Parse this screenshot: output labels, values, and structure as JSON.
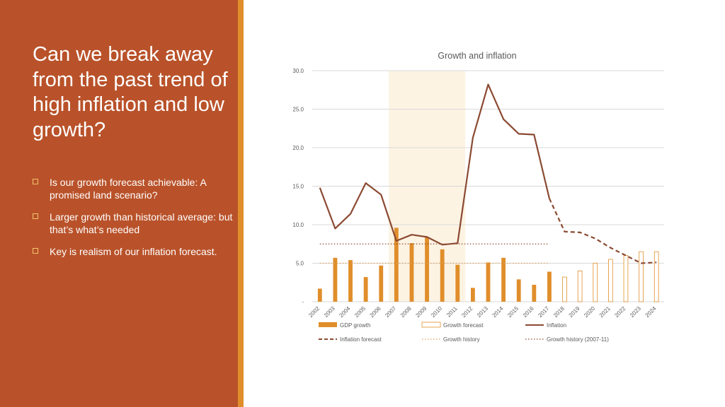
{
  "slide": {
    "title": "Can we break away from the past trend of high inflation and low growth?",
    "bullets": [
      "Is our growth forecast achievable: A promised land scenario?",
      "Larger growth than historical average: but that’s what’s needed",
      "Key is realism of our inflation forecast."
    ]
  },
  "colors": {
    "left_panel": "#b9522a",
    "accent_bar": "#e08e2b",
    "bar": "#e08e2b",
    "inflation": "#8b4a32",
    "highlight_band": "#fdf3e3",
    "grid": "#d9d9d9",
    "text": "#595959"
  },
  "chart_data": {
    "type": "bar",
    "title": "Growth and inflation",
    "ylim": [
      0,
      30
    ],
    "y_ticks": [
      "-",
      "5.0",
      "10.0",
      "15.0",
      "20.0",
      "25.0",
      "30.0"
    ],
    "grid": true,
    "legend_position": "bottom",
    "categories": [
      "2002",
      "2003",
      "2004",
      "2005",
      "2006",
      "2007",
      "2008",
      "2009",
      "2010",
      "2011",
      "2012",
      "2013",
      "2014",
      "2015",
      "2016",
      "2017",
      "2018",
      "2019",
      "2020",
      "2021",
      "2022",
      "2023",
      "2024"
    ],
    "highlight_period": [
      "2007",
      "2011"
    ],
    "series": [
      {
        "name": "GDP growth",
        "kind": "bar",
        "values": [
          1.7,
          5.7,
          5.4,
          3.2,
          4.7,
          9.6,
          7.6,
          8.4,
          6.8,
          4.8,
          1.8,
          5.1,
          5.7,
          2.9,
          2.2,
          3.9,
          null,
          null,
          null,
          null,
          null,
          null,
          null
        ]
      },
      {
        "name": "Growth forecast",
        "kind": "bar-outline",
        "values": [
          null,
          null,
          null,
          null,
          null,
          null,
          null,
          null,
          null,
          null,
          null,
          null,
          null,
          null,
          null,
          null,
          3.2,
          4.0,
          5.0,
          5.5,
          6.0,
          6.5,
          6.5
        ]
      },
      {
        "name": "Inflation",
        "kind": "line",
        "values": [
          14.8,
          9.5,
          11.4,
          15.4,
          13.9,
          7.9,
          8.7,
          8.4,
          7.4,
          7.6,
          21.3,
          28.2,
          23.7,
          21.8,
          21.7,
          13.4,
          null,
          null,
          null,
          null,
          null,
          null,
          null
        ]
      },
      {
        "name": "Inflation forecast",
        "kind": "line-dashed",
        "values": [
          null,
          null,
          null,
          null,
          null,
          null,
          null,
          null,
          null,
          null,
          null,
          null,
          null,
          null,
          null,
          13.4,
          9.1,
          9.0,
          8.2,
          7.0,
          6.0,
          5.0,
          5.1
        ]
      },
      {
        "name": "Growth history",
        "kind": "hline-dotted",
        "value": 5.0,
        "range": [
          "2002",
          "2017"
        ]
      },
      {
        "name": "Growth history (2007-11)",
        "kind": "hline-dotted",
        "value": 7.5,
        "range": [
          "2002",
          "2017"
        ]
      }
    ]
  }
}
